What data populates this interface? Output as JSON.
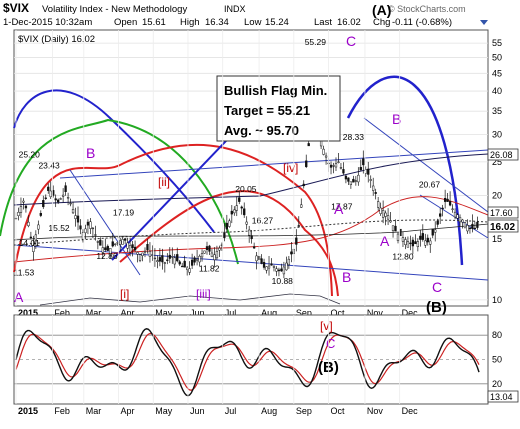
{
  "header": {
    "symbol": "$VIX",
    "name": "Volatility Index - New Methodology",
    "exchange": "INDX",
    "datetime": "1-Dec-2015 10:32am",
    "open_label": "Open",
    "open": "15.61",
    "high_label": "High",
    "high": "16.34",
    "low_label": "Low",
    "low": "15.24",
    "last_label": "Last",
    "last": "16.02",
    "chg_label": "Chg",
    "chg": "-0.11 (-0.68%)",
    "watermark": "© StockCharts.com",
    "legend": "$VIX (Daily) 16.02"
  },
  "annotation": {
    "line1": "Bullish Flag Min.",
    "line2": "Target = 55.21",
    "line3": "Avg. ~ 95.70"
  },
  "chart_data": [
    {
      "type": "candlestick",
      "title": "$VIX (Daily) 16.02",
      "y_scale": "log",
      "ylim": [
        9.6,
        60
      ],
      "yticks": [
        10,
        15,
        20,
        25,
        30,
        35,
        40,
        45,
        50,
        55
      ],
      "xticks": [
        "2015",
        "Feb",
        "Mar",
        "Apr",
        "May",
        "Jun",
        "Jul",
        "Aug",
        "Sep",
        "Oct",
        "Nov",
        "Dec"
      ],
      "right_axis_labels": [
        "26.08",
        "17.60",
        "16.02"
      ],
      "series": [
        {
          "name": "VIX close (approximate)",
          "values": [
            [
              0,
              17.2
            ],
            [
              5,
              19.5
            ],
            [
              10,
              14.0
            ],
            [
              15,
              17.5
            ],
            [
              20,
              21.0
            ],
            [
              25,
              19.0
            ],
            [
              30,
              20.5
            ],
            [
              35,
              18.0
            ],
            [
              40,
              15.5
            ],
            [
              45,
              16.8
            ],
            [
              50,
              14.5
            ],
            [
              55,
              13.8
            ],
            [
              60,
              14.5
            ],
            [
              65,
              15.0
            ],
            [
              70,
              14.2
            ],
            [
              75,
              13.5
            ],
            [
              80,
              14.0
            ],
            [
              85,
              13.0
            ],
            [
              90,
              12.8
            ],
            [
              95,
              13.4
            ],
            [
              100,
              12.5
            ],
            [
              105,
              12.3
            ],
            [
              110,
              13.2
            ],
            [
              115,
              14.0
            ],
            [
              120,
              13.5
            ],
            [
              125,
              14.5
            ],
            [
              130,
              17.5
            ],
            [
              135,
              19.2
            ],
            [
              140,
              16.5
            ],
            [
              145,
              13.5
            ],
            [
              150,
              12.4
            ],
            [
              155,
              12.6
            ],
            [
              160,
              12.0
            ],
            [
              165,
              13.1
            ],
            [
              170,
              14.6
            ],
            [
              175,
              23.0
            ],
            [
              180,
              35.0
            ],
            [
              185,
              28.0
            ],
            [
              190,
              24.0
            ],
            [
              195,
              25.0
            ],
            [
              200,
              22.0
            ],
            [
              205,
              21.8
            ],
            [
              210,
              24.5
            ],
            [
              215,
              22.0
            ],
            [
              220,
              18.5
            ],
            [
              225,
              17.5
            ],
            [
              230,
              15.6
            ],
            [
              235,
              15.0
            ],
            [
              240,
              14.3
            ],
            [
              245,
              15.0
            ],
            [
              250,
              14.6
            ],
            [
              255,
              16.5
            ],
            [
              260,
              19.5
            ],
            [
              265,
              18.0
            ],
            [
              270,
              17.0
            ],
            [
              275,
              16.0
            ],
            [
              280,
              16.2
            ]
          ]
        }
      ],
      "price_labels": [
        {
          "text": "55.29",
          "x": 177,
          "y": 53.29
        },
        {
          "text": "25.20",
          "x": 4,
          "y": 25.2
        },
        {
          "text": "23.43",
          "x": 16,
          "y": 23.43
        },
        {
          "text": "15.52",
          "x": 22,
          "y": 15.5
        },
        {
          "text": "14.01",
          "x": 4,
          "y": 14.01
        },
        {
          "text": "11.53",
          "x": 1,
          "y": 11.53
        },
        {
          "text": "12.86",
          "x": 51,
          "y": 12.86
        },
        {
          "text": "17.19",
          "x": 61,
          "y": 17.19
        },
        {
          "text": "11.82",
          "x": 113,
          "y": 11.82
        },
        {
          "text": "20.05",
          "x": 135,
          "y": 20.05
        },
        {
          "text": "16.27",
          "x": 145,
          "y": 16.27
        },
        {
          "text": "10.88",
          "x": 157,
          "y": 10.88
        },
        {
          "text": "28.33",
          "x": 200,
          "y": 28.33
        },
        {
          "text": "17.87",
          "x": 193,
          "y": 17.87
        },
        {
          "text": "20.67",
          "x": 246,
          "y": 20.67
        },
        {
          "text": "12.80",
          "x": 230,
          "y": 12.8
        }
      ],
      "wave_labels": [
        {
          "text": "(A)",
          "color": "#000000"
        },
        {
          "text": "C",
          "color": "#9b00c9"
        },
        {
          "text": "B",
          "color": "#9b00c9"
        },
        {
          "text": "A",
          "color": "#9b00c9"
        },
        {
          "text": "[iv]",
          "color": "#c00000"
        },
        {
          "text": "[ii]",
          "color": "#c00000"
        },
        {
          "text": "[i]",
          "color": "#c00000"
        },
        {
          "text": "[iii]",
          "color": "#9b00c9"
        },
        {
          "text": "(B)",
          "color": "#000000"
        }
      ]
    },
    {
      "type": "line",
      "title": "Oscillator",
      "ylim": [
        0,
        100
      ],
      "yticks": [
        20,
        50,
        80
      ],
      "right_axis_labels": [
        "13.04"
      ],
      "xticks": [
        "2015",
        "Feb",
        "Mar",
        "Apr",
        "May",
        "Jun",
        "Jul",
        "Aug",
        "Sep",
        "Oct",
        "Nov",
        "Dec"
      ],
      "wave_labels": [
        {
          "text": "[v]",
          "color": "#c00000"
        },
        {
          "text": "C",
          "color": "#9b00c9"
        },
        {
          "text": "(B)",
          "color": "#000000"
        }
      ]
    }
  ]
}
